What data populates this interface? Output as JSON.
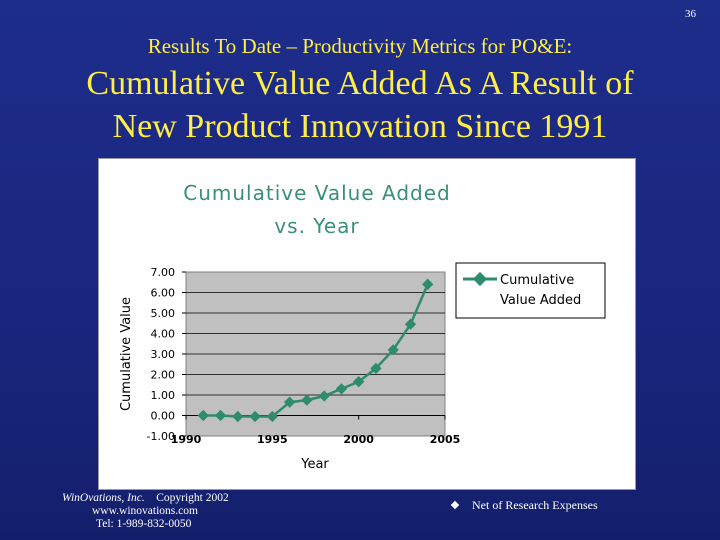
{
  "slide": {
    "number": "36",
    "subtitle": "Results To Date – Productivity Metrics for PO&E:",
    "title_line1": "Cumulative Value Added As A Result of",
    "title_line2": "New Product Innovation Since 1991"
  },
  "footer": {
    "company": "WinOvations, Inc.",
    "copyright": "Copyright 2002",
    "website": "www.winovations.com",
    "phone": "Tel:  1-989-832-0050",
    "note": "Net of Research Expenses"
  },
  "colors": {
    "background": "#1a2780",
    "title": "#ffee44",
    "series": "#2e8b6e",
    "plot_area": "#c0c0c0",
    "chart_title": "#3a8f7a"
  },
  "chart_data": {
    "type": "line",
    "title_line1": "Cumulative Value Added",
    "title_line2": "vs. Year",
    "xlabel": "Year",
    "ylabel": "Cumulative Value",
    "xlim": [
      1990,
      2005
    ],
    "ylim": [
      -1.0,
      7.0
    ],
    "x_ticks": [
      "1990",
      "1995",
      "2000",
      "2005"
    ],
    "x_tick_values": [
      1990,
      1995,
      2000,
      2005
    ],
    "y_ticks": [
      "-1.00",
      "0.00",
      "1.00",
      "2.00",
      "3.00",
      "4.00",
      "5.00",
      "6.00",
      "7.00"
    ],
    "y_tick_values": [
      -1,
      0,
      1,
      2,
      3,
      4,
      5,
      6,
      7
    ],
    "grid": "horizontal",
    "legend_position": "right",
    "series": [
      {
        "name": "Cumulative Value Added",
        "legend_line1": "Cumulative",
        "legend_line2": "Value Added",
        "x": [
          1991,
          1992,
          1993,
          1994,
          1995,
          1996,
          1997,
          1998,
          1999,
          2000,
          2001,
          2002,
          2003,
          2004
        ],
        "y": [
          0.0,
          0.0,
          -0.05,
          -0.05,
          -0.05,
          0.65,
          0.75,
          0.95,
          1.3,
          1.65,
          2.3,
          3.2,
          4.45,
          6.4
        ]
      }
    ]
  }
}
